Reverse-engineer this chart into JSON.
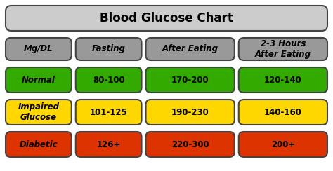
{
  "title": "Blood Glucose Chart",
  "title_bg": "#cccccc",
  "header_bg": "#999999",
  "col_headers": [
    "Mg/DL",
    "Fasting",
    "After Eating",
    "2-3 Hours\nAfter Eating"
  ],
  "rows": [
    {
      "label": "Normal",
      "values": [
        "80-100",
        "170-200",
        "120-140"
      ],
      "color": "#33aa00"
    },
    {
      "label": "Impaired\nGlucose",
      "values": [
        "101-125",
        "190-230",
        "140-160"
      ],
      "color": "#FFD700"
    },
    {
      "label": "Diabetic",
      "values": [
        "126+",
        "220-300",
        "200+"
      ],
      "color": "#dd3300"
    }
  ],
  "border_color": "#444444",
  "bg_color": "#ffffff",
  "text_color": "#000000",
  "title_fontsize": 12,
  "header_fontsize": 8.5,
  "cell_fontsize": 8.5,
  "fig_width": 4.74,
  "fig_height": 2.44,
  "dpi": 100
}
